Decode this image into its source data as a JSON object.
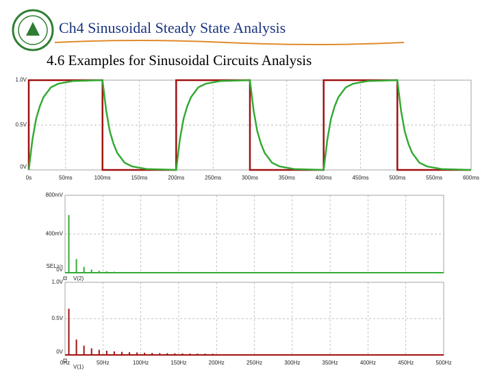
{
  "header": {
    "title": "Ch4  Sinusoidal Steady State Analysis",
    "subtitle": "4.6 Examples for Sinusoidal Circuits Analysis"
  },
  "chart_data": [
    {
      "type": "line",
      "xlim": [
        0,
        600
      ],
      "xticks": [
        {
          "value": 0,
          "label": "0s"
        },
        {
          "value": 50,
          "label": "50ms"
        },
        {
          "value": 100,
          "label": "100ms"
        },
        {
          "value": 150,
          "label": "150ms"
        },
        {
          "value": 200,
          "label": "200ms"
        },
        {
          "value": 250,
          "label": "250ms"
        },
        {
          "value": 300,
          "label": "300ms"
        },
        {
          "value": 350,
          "label": "350ms"
        },
        {
          "value": 400,
          "label": "400ms"
        },
        {
          "value": 450,
          "label": "450ms"
        },
        {
          "value": 500,
          "label": "500ms"
        },
        {
          "value": 550,
          "label": "550ms"
        },
        {
          "value": 600,
          "label": "600ms"
        }
      ],
      "ylim": [
        0,
        1.0
      ],
      "yticks": [
        {
          "value": 0,
          "label": "0V"
        },
        {
          "value": 0.5,
          "label": "0.5V"
        },
        {
          "value": 1.0,
          "label": "1.0V"
        }
      ],
      "grid": true,
      "series": [
        {
          "color": "#a01010",
          "x": [
            0,
            0,
            100,
            100,
            200,
            200,
            300,
            300,
            400,
            400,
            500,
            500,
            600
          ],
          "values": [
            0,
            1,
            1,
            0,
            0,
            1,
            1,
            0,
            0,
            1,
            1,
            0,
            0
          ]
        },
        {
          "color": "#33aa33",
          "x": [
            0,
            5,
            10,
            15,
            20,
            30,
            40,
            60,
            100,
            105,
            110,
            115,
            120,
            130,
            140,
            160,
            200,
            205,
            210,
            215,
            220,
            230,
            240,
            260,
            300,
            305,
            310,
            315,
            320,
            330,
            340,
            360,
            400,
            405,
            410,
            415,
            420,
            430,
            440,
            460,
            500,
            505,
            510,
            515,
            520,
            530,
            540,
            560,
            600
          ],
          "values": [
            0,
            0.34,
            0.57,
            0.71,
            0.81,
            0.92,
            0.96,
            0.99,
            1,
            0.66,
            0.43,
            0.29,
            0.19,
            0.08,
            0.04,
            0.01,
            0,
            0.34,
            0.57,
            0.71,
            0.81,
            0.92,
            0.96,
            0.99,
            1,
            0.66,
            0.43,
            0.29,
            0.19,
            0.08,
            0.04,
            0.01,
            0,
            0.34,
            0.57,
            0.71,
            0.81,
            0.92,
            0.96,
            0.99,
            1,
            0.66,
            0.43,
            0.29,
            0.19,
            0.08,
            0.04,
            0.01,
            0
          ]
        }
      ]
    },
    {
      "type": "stem",
      "annotation": "SEL>>",
      "xlim": [
        0,
        500
      ],
      "xticks": [
        0,
        50,
        100,
        150,
        200,
        250,
        300,
        350,
        400,
        450,
        500
      ],
      "ylim": [
        0,
        800
      ],
      "yticks": [
        {
          "value": 0,
          "label": "0V"
        },
        {
          "value": 400,
          "label": "400mV"
        },
        {
          "value": 800,
          "label": "800mV"
        }
      ],
      "grid": true,
      "series": [
        {
          "name": "V(2)",
          "color": "#33aa33",
          "x": [
            5,
            15,
            25,
            35,
            45,
            55,
            65,
            75,
            85,
            95
          ],
          "values": [
            596,
            141,
            60,
            32,
            20,
            14,
            10,
            7,
            6,
            5
          ]
        }
      ]
    },
    {
      "type": "stem",
      "xlim": [
        0,
        500
      ],
      "xticks": [
        {
          "value": 0,
          "label": "0Hz"
        },
        {
          "value": 50,
          "label": "50Hz"
        },
        {
          "value": 100,
          "label": "100Hz"
        },
        {
          "value": 150,
          "label": "150Hz"
        },
        {
          "value": 200,
          "label": "200Hz"
        },
        {
          "value": 250,
          "label": "250Hz"
        },
        {
          "value": 300,
          "label": "300Hz"
        },
        {
          "value": 350,
          "label": "350Hz"
        },
        {
          "value": 400,
          "label": "400Hz"
        },
        {
          "value": 450,
          "label": "450Hz"
        },
        {
          "value": 500,
          "label": "500Hz"
        }
      ],
      "ylim": [
        0,
        1.0
      ],
      "yticks": [
        {
          "value": 0,
          "label": "0V"
        },
        {
          "value": 0.5,
          "label": "0.5V"
        },
        {
          "value": 1.0,
          "label": "1.0V"
        }
      ],
      "grid": true,
      "series": [
        {
          "name": "V(1)",
          "color": "#a01010",
          "x": [
            5,
            15,
            25,
            35,
            45,
            55,
            65,
            75,
            85,
            95,
            105,
            115,
            125,
            135,
            145,
            155,
            165,
            175,
            185,
            195
          ],
          "values": [
            0.637,
            0.212,
            0.127,
            0.091,
            0.071,
            0.058,
            0.049,
            0.042,
            0.037,
            0.034,
            0.03,
            0.028,
            0.025,
            0.024,
            0.022,
            0.021,
            0.019,
            0.018,
            0.017,
            0.016
          ]
        }
      ]
    }
  ]
}
